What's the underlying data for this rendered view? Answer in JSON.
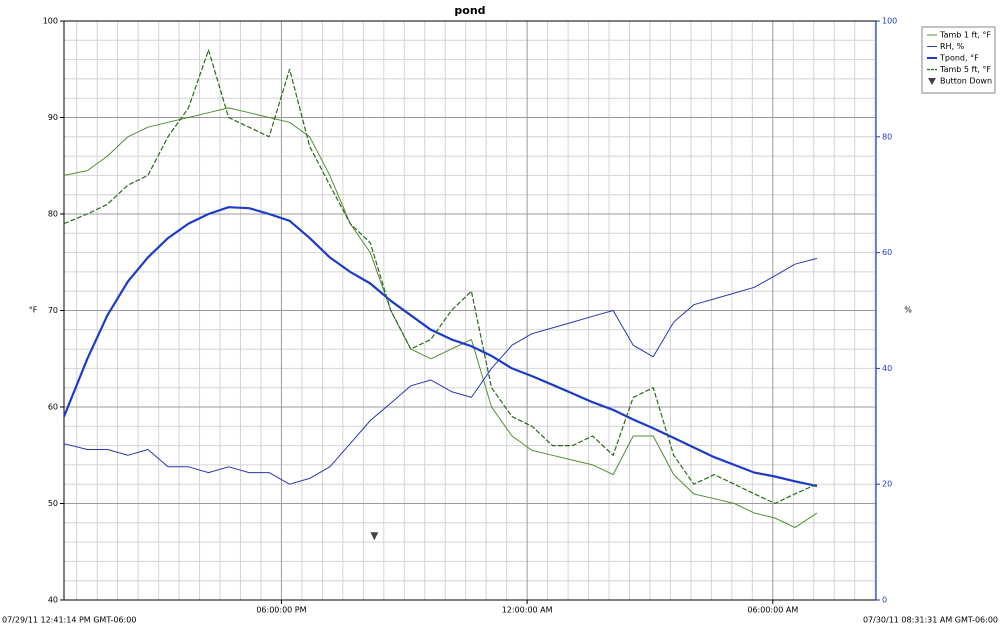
{
  "chart_data": {
    "type": "line",
    "title": "pond",
    "ylabel": "°F",
    "y2label": "%",
    "start_label": "07/29/11 12:41:14 PM GMT-06:00",
    "end_label": "07/30/11 08:31:31 AM GMT-06:00",
    "xlim": [
      12.69,
      32.52
    ],
    "xticks": [
      {
        "value": 18,
        "label": "06:00:00 PM"
      },
      {
        "value": 24,
        "label": "12:00:00 AM"
      },
      {
        "value": 30,
        "label": "06:00:00 AM"
      }
    ],
    "xminorticks": [
      13,
      13.5,
      14,
      14.5,
      15,
      15.5,
      16,
      16.5,
      17,
      17.5,
      18.5,
      19,
      19.5,
      20,
      20.5,
      21,
      21.5,
      22,
      22.5,
      23,
      23.5,
      24.5,
      25,
      25.5,
      26,
      26.5,
      27,
      27.5,
      28,
      28.5,
      29,
      29.5,
      30.5,
      31,
      31.5,
      32,
      32.5
    ],
    "ylim": [
      40,
      100
    ],
    "yticks": [
      40,
      50,
      60,
      70,
      80,
      90,
      100
    ],
    "yminorticks": [
      42,
      44,
      46,
      48,
      52,
      54,
      56,
      58,
      62,
      64,
      66,
      68,
      72,
      74,
      76,
      78,
      82,
      84,
      86,
      88,
      92,
      94,
      96,
      98
    ],
    "y2lim": [
      0,
      100
    ],
    "y2ticks": [
      0,
      20,
      40,
      60,
      80,
      100
    ],
    "grid": true,
    "x": [
      12.69,
      13.26,
      13.75,
      14.25,
      14.74,
      15.23,
      15.73,
      16.22,
      16.71,
      17.21,
      17.7,
      18.2,
      18.69,
      19.18,
      19.68,
      20.17,
      20.67,
      21.16,
      21.65,
      22.15,
      22.64,
      23.13,
      23.63,
      24.12,
      24.62,
      25.11,
      25.6,
      26.1,
      26.59,
      27.08,
      27.58,
      28.07,
      28.57,
      29.06,
      29.55,
      30.05,
      30.54,
      31.08
    ],
    "series": [
      {
        "name": "Tamb 1 ft, °F",
        "color": "#4f8f33",
        "width": 1,
        "dashed": false,
        "values": [
          84,
          84.5,
          86,
          88,
          89,
          89.5,
          90,
          90.5,
          91,
          90.5,
          90,
          89.5,
          88,
          84,
          79,
          76,
          70,
          66,
          65,
          66,
          67,
          60,
          57,
          55.5,
          55,
          54.5,
          54,
          53,
          57,
          57,
          53,
          51,
          50.5,
          50,
          49,
          48.5,
          47.5,
          49
        ]
      },
      {
        "name": "RH, %",
        "color": "#2838b8",
        "width": 1,
        "dashed": false,
        "axis": "y2",
        "values": [
          27,
          26,
          26,
          25,
          26,
          23,
          23,
          22,
          23,
          22,
          22,
          20,
          21,
          23,
          27,
          31,
          34,
          37,
          38,
          36,
          35,
          40,
          44,
          46,
          47,
          48,
          49,
          50,
          44,
          42,
          48,
          51,
          52,
          53,
          54,
          56,
          58,
          59
        ]
      },
      {
        "name": "Tpond, °F",
        "color": "#1c3cc8",
        "width": 2.2,
        "dashed": false,
        "values": [
          59,
          65,
          69.5,
          73,
          75.5,
          77.5,
          79,
          80,
          80.7,
          80.6,
          80,
          79.3,
          77.5,
          75.5,
          74,
          72.8,
          71,
          69.5,
          68,
          67,
          66.3,
          65.3,
          64,
          63.2,
          62.3,
          61.4,
          60.5,
          59.7,
          58.7,
          57.8,
          56.8,
          55.8,
          54.8,
          54,
          53.2,
          52.8,
          52.3,
          51.8
        ]
      },
      {
        "name": "Tamb 5 ft, °F",
        "color": "#2a6a1c",
        "width": 1.2,
        "dashed": true,
        "values": [
          79,
          80,
          81,
          83,
          84,
          88,
          91,
          97,
          90,
          89,
          88,
          95,
          87,
          83,
          79,
          77,
          70,
          66,
          67,
          70,
          72,
          62,
          59,
          58,
          56,
          56,
          57,
          55,
          61,
          62,
          55,
          52,
          53,
          52,
          51,
          50,
          51,
          52
        ]
      }
    ],
    "markers": [
      {
        "name": "Button Down",
        "color": "#444444",
        "x": 20.27,
        "y": 46.6
      }
    ]
  }
}
